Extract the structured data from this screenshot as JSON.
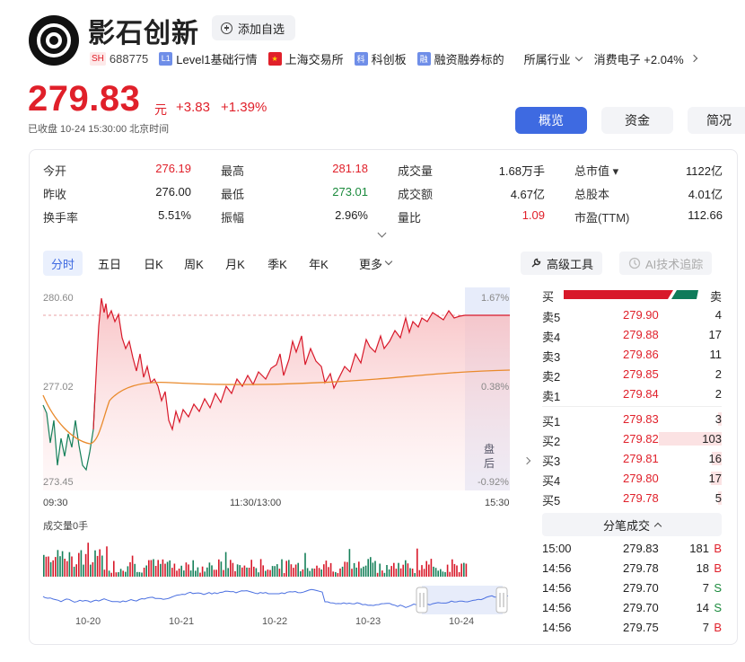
{
  "header": {
    "name": "影石创新",
    "watch_label": "添加自选",
    "market_badge": "SH",
    "code": "688775",
    "level1_badge": "L1",
    "level1_label": "Level1基础行情",
    "exchange_badge": "★",
    "exchange_label": "上海交易所",
    "board_badge": "科",
    "board_label": "科创板",
    "margin_badge": "融",
    "margin_label": "融资融券标的",
    "industry_label": "所属行业",
    "sector_label": "消费电子 +2.04%"
  },
  "price": {
    "current": "279.83",
    "unit": "元",
    "change": "+3.83",
    "change_pct": "+1.39%",
    "status": "已收盘  10-24 15:30:00  北京时间"
  },
  "tabs": [
    "概览",
    "资金",
    "简况"
  ],
  "quote": {
    "col1": [
      {
        "label": "今开",
        "value": "276.19",
        "color": "red"
      },
      {
        "label": "昨收",
        "value": "276.00",
        "color": "black"
      },
      {
        "label": "换手率",
        "value": "5.51%",
        "color": "black"
      }
    ],
    "col2": [
      {
        "label": "最高",
        "value": "281.18",
        "color": "red"
      },
      {
        "label": "最低",
        "value": "273.01",
        "color": "green"
      },
      {
        "label": "振幅",
        "value": "2.96%",
        "color": "black"
      }
    ],
    "col3": [
      {
        "label": "成交量",
        "value": "1.68万手",
        "color": "black"
      },
      {
        "label": "成交额",
        "value": "4.67亿",
        "color": "black"
      },
      {
        "label": "量比",
        "value": "1.09",
        "color": "red"
      }
    ],
    "col4": [
      {
        "label": "总市值 ▾",
        "value": "1122亿",
        "color": "black"
      },
      {
        "label": "总股本",
        "value": "4.01亿",
        "color": "black"
      },
      {
        "label": "市盈(TTM)",
        "value": "112.66",
        "color": "black"
      }
    ]
  },
  "periods": [
    "分时",
    "五日",
    "日K",
    "周K",
    "月K",
    "季K",
    "年K",
    "更多"
  ],
  "tools": {
    "advanced": "高级工具",
    "ai": "AI技术追踪"
  },
  "chart_data": {
    "type": "line",
    "y_labels": {
      "high": "280.60",
      "mid": "277.02",
      "low": "273.45"
    },
    "pct_labels": {
      "high": "1.67%",
      "mid": "0.38%",
      "low": "-0.92%"
    },
    "x_labels": [
      "09:30",
      "11:30/13:00",
      "15:30"
    ],
    "after_hours_label": "盘后",
    "volume_label": "成交量0手",
    "mini_dates": [
      "10-20",
      "10-21",
      "10-22",
      "10-23",
      "10-24"
    ],
    "ylim": [
      273.45,
      280.6
    ],
    "prev_close": 276.0
  },
  "order_book": {
    "header_buy": "买",
    "header_sell": "卖",
    "asks": [
      {
        "label": "卖5",
        "price": "279.90",
        "vol": "4"
      },
      {
        "label": "卖4",
        "price": "279.88",
        "vol": "17"
      },
      {
        "label": "卖3",
        "price": "279.86",
        "vol": "11"
      },
      {
        "label": "卖2",
        "price": "279.85",
        "vol": "2"
      },
      {
        "label": "卖1",
        "price": "279.84",
        "vol": "2"
      }
    ],
    "bids": [
      {
        "label": "买1",
        "price": "279.83",
        "vol": "3"
      },
      {
        "label": "买2",
        "price": "279.82",
        "vol": "103"
      },
      {
        "label": "买3",
        "price": "279.81",
        "vol": "16"
      },
      {
        "label": "买4",
        "price": "279.80",
        "vol": "17"
      },
      {
        "label": "买5",
        "price": "279.78",
        "vol": "5"
      }
    ]
  },
  "trades_title": "分笔成交",
  "trades": [
    {
      "time": "15:00",
      "price": "279.83",
      "vol": "181",
      "side": "B"
    },
    {
      "time": "14:56",
      "price": "279.78",
      "vol": "18",
      "side": "B"
    },
    {
      "time": "14:56",
      "price": "279.70",
      "vol": "7",
      "side": "S"
    },
    {
      "time": "14:56",
      "price": "279.70",
      "vol": "14",
      "side": "S"
    },
    {
      "time": "14:56",
      "price": "279.75",
      "vol": "7",
      "side": "B"
    }
  ]
}
